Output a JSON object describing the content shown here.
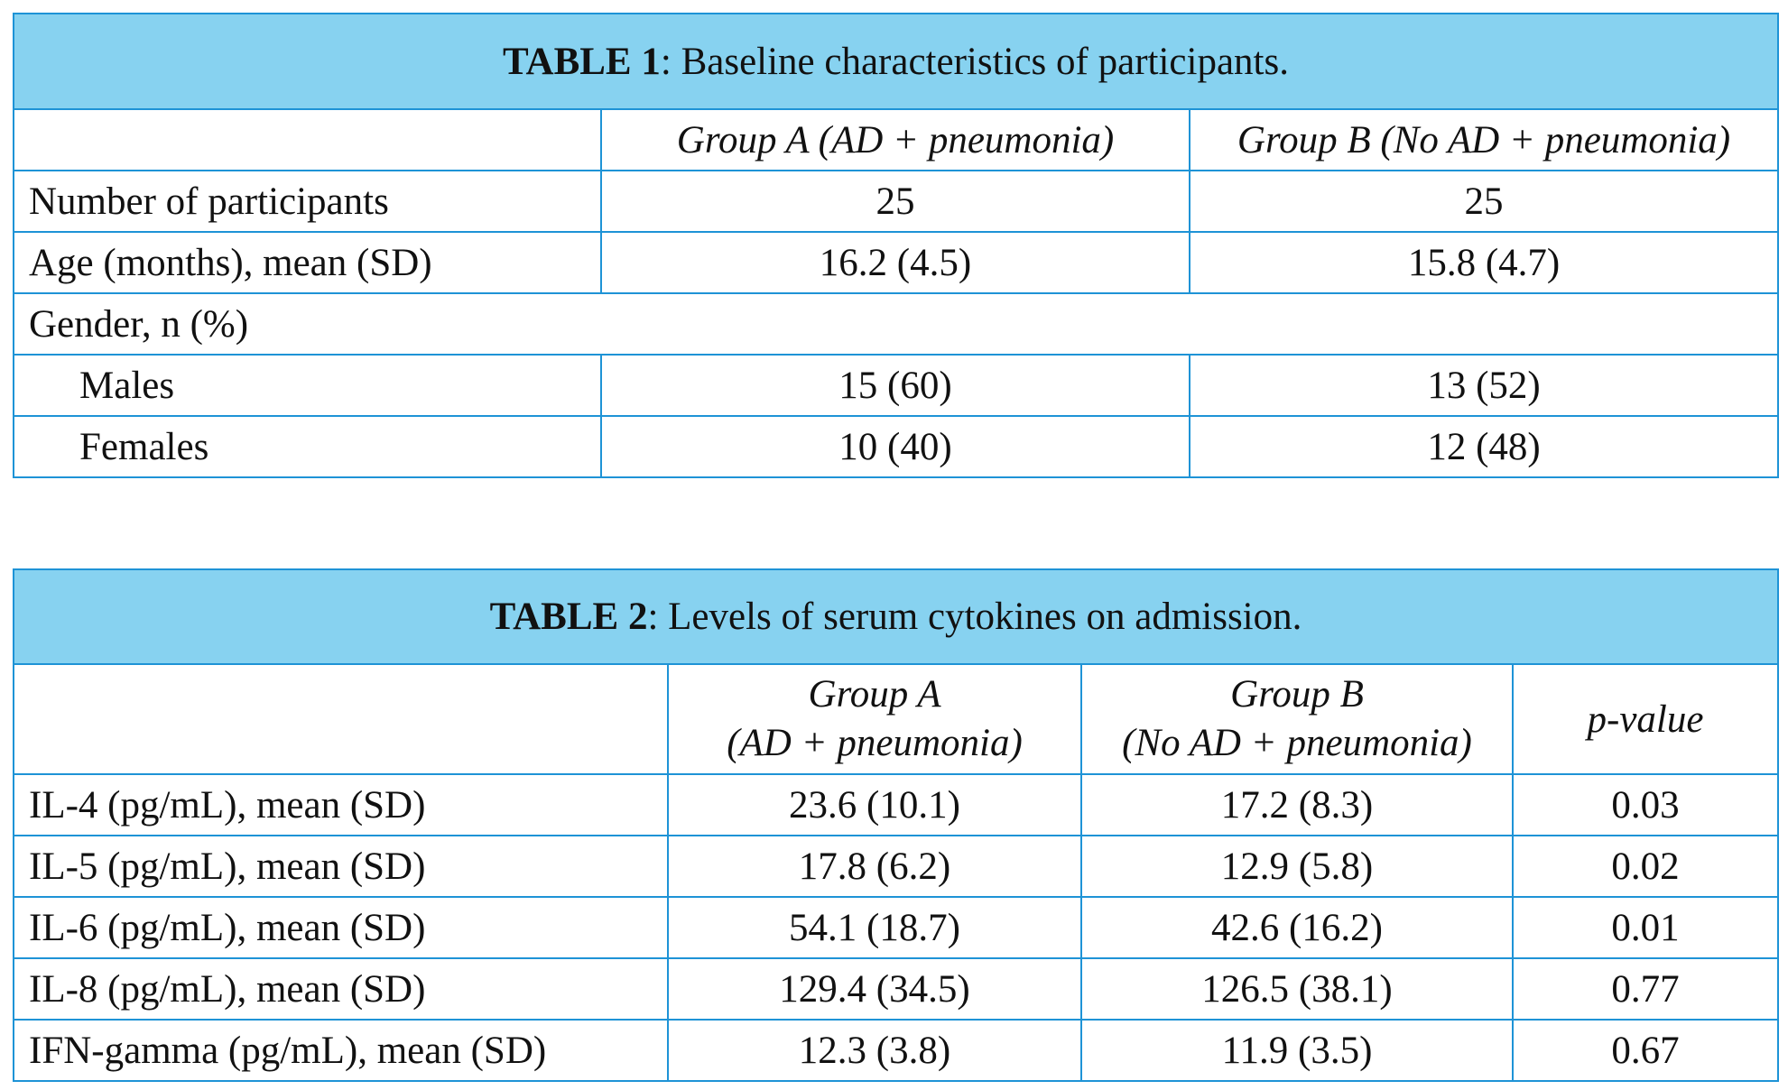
{
  "table1": {
    "label": "TABLE 1",
    "caption": ": Baseline characteristics of participants.",
    "headers": [
      "",
      "Group A (AD + pneumonia)",
      "Group B (No AD + pneumonia)"
    ],
    "rows": [
      {
        "label": "Number of participants",
        "a": "25",
        "b": "25"
      },
      {
        "label": "Age (months), mean (SD)",
        "a": "16.2 (4.5)",
        "b": "15.8 (4.7)"
      },
      {
        "label": "Gender, n (%)",
        "a": "",
        "b": ""
      },
      {
        "label": "Males",
        "a": "15 (60)",
        "b": "13 (52)"
      },
      {
        "label": "Females",
        "a": "10 (40)",
        "b": "12 (48)"
      }
    ]
  },
  "table2": {
    "label": "TABLE 2",
    "caption": ": Levels of serum cytokines on admission.",
    "headers": {
      "group_a_line1": "Group A",
      "group_a_line2": "(AD + pneumonia)",
      "group_b_line1": "Group B",
      "group_b_line2": "(No AD + pneumonia)",
      "p_value": "p-value"
    },
    "rows": [
      {
        "label": "IL-4 (pg/mL), mean (SD)",
        "a": "23.6 (10.1)",
        "b": "17.2 (8.3)",
        "p": "0.03"
      },
      {
        "label": "IL-5 (pg/mL), mean (SD)",
        "a": "17.8 (6.2)",
        "b": "12.9 (5.8)",
        "p": "0.02"
      },
      {
        "label": "IL-6 (pg/mL), mean (SD)",
        "a": "54.1 (18.7)",
        "b": "42.6 (16.2)",
        "p": "0.01"
      },
      {
        "label": "IL-8 (pg/mL), mean (SD)",
        "a": "129.4 (34.5)",
        "b": "126.5 (38.1)",
        "p": "0.77"
      },
      {
        "label": "IFN-gamma (pg/mL), mean (SD)",
        "a": "12.3 (3.8)",
        "b": "11.9 (3.5)",
        "p": "0.67"
      }
    ]
  },
  "colors": {
    "caption_background": "#87d2f0",
    "border": "#1e93d6"
  }
}
